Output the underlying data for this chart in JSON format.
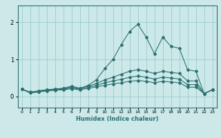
{
  "xlabel": "Humidex (Indice chaleur)",
  "bg_color": "#cce8e8",
  "grid_color": "#99cccc",
  "line_color": "#2d7070",
  "marker": "D",
  "markersize": 2.0,
  "linewidth": 0.8,
  "xlim": [
    -0.5,
    23.5
  ],
  "ylim": [
    -0.3,
    2.45
  ],
  "xticks": [
    0,
    1,
    2,
    3,
    4,
    5,
    6,
    7,
    8,
    9,
    10,
    11,
    12,
    13,
    14,
    15,
    16,
    17,
    18,
    19,
    20,
    21,
    22,
    23
  ],
  "yticks": [
    0,
    1,
    2
  ],
  "series": [
    [
      0.2,
      0.1,
      0.15,
      0.18,
      0.2,
      0.22,
      0.28,
      0.22,
      0.3,
      0.45,
      0.75,
      1.0,
      1.4,
      1.75,
      1.95,
      1.6,
      1.15,
      1.6,
      1.35,
      1.3,
      0.72,
      0.68,
      0.08,
      0.18
    ],
    [
      0.2,
      0.12,
      0.15,
      0.18,
      0.2,
      0.22,
      0.26,
      0.22,
      0.28,
      0.35,
      0.45,
      0.52,
      0.6,
      0.68,
      0.72,
      0.68,
      0.62,
      0.68,
      0.65,
      0.62,
      0.42,
      0.42,
      0.08,
      0.18
    ],
    [
      0.2,
      0.1,
      0.13,
      0.16,
      0.18,
      0.2,
      0.23,
      0.2,
      0.25,
      0.3,
      0.37,
      0.42,
      0.46,
      0.52,
      0.55,
      0.52,
      0.47,
      0.52,
      0.5,
      0.47,
      0.32,
      0.32,
      0.08,
      0.18
    ],
    [
      0.2,
      0.1,
      0.12,
      0.15,
      0.17,
      0.18,
      0.21,
      0.18,
      0.22,
      0.26,
      0.3,
      0.34,
      0.37,
      0.41,
      0.43,
      0.41,
      0.37,
      0.41,
      0.39,
      0.37,
      0.25,
      0.25,
      0.08,
      0.18
    ]
  ]
}
